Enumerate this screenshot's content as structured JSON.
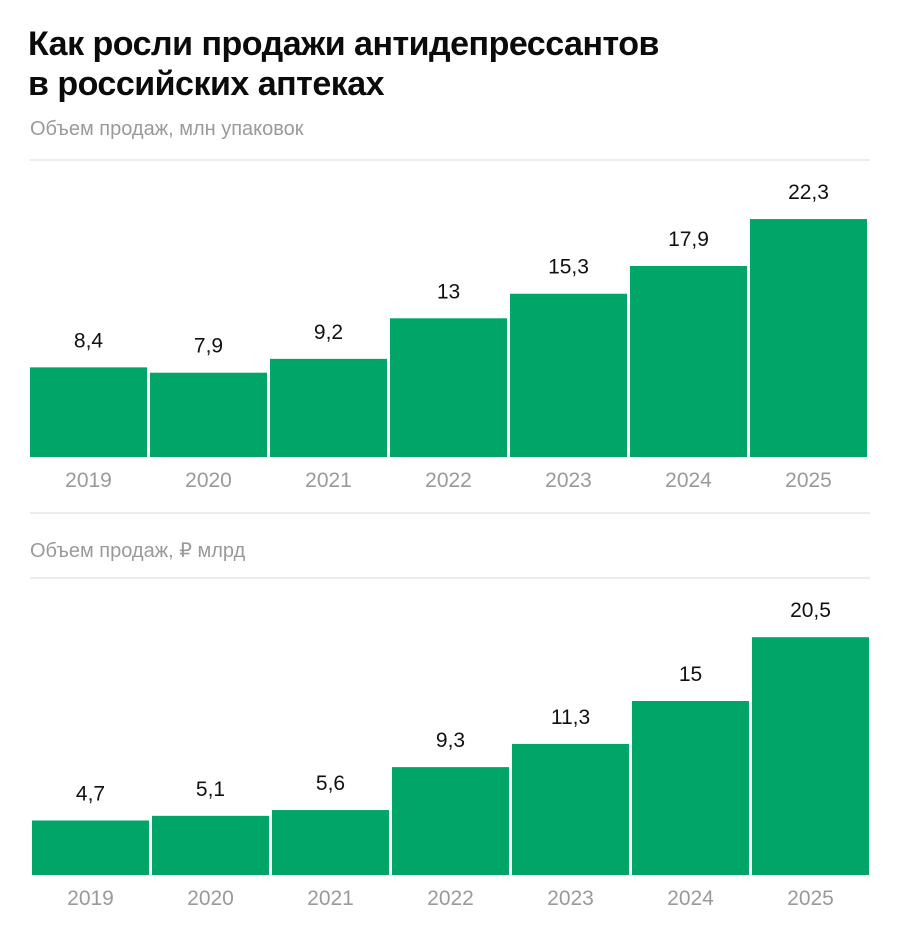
{
  "title_line1": "Как росли продажи антидепрессантов",
  "title_line2": "в российских аптеках",
  "bar_color": "#00a567",
  "chart_data": [
    {
      "type": "bar",
      "title": "Объем продаж, млн упаковок",
      "categories": [
        "2019",
        "2020",
        "2021",
        "2022",
        "2023",
        "2024",
        "2025"
      ],
      "values": [
        8.4,
        7.9,
        9.2,
        13,
        15.3,
        17.9,
        22.3
      ],
      "labels": [
        "8,4",
        "7,9",
        "9,2",
        "13",
        "15,3",
        "17,9",
        "22,3"
      ],
      "grid": false
    },
    {
      "type": "bar",
      "title": "Объем продаж, ₽ млрд",
      "categories": [
        "2019",
        "2020",
        "2021",
        "2022",
        "2023",
        "2024",
        "2025"
      ],
      "values": [
        4.7,
        5.1,
        5.6,
        9.3,
        11.3,
        15,
        20.5
      ],
      "labels": [
        "4,7",
        "5,1",
        "5,6",
        "9,3",
        "11,3",
        "15",
        "20,5"
      ],
      "grid": false
    }
  ]
}
